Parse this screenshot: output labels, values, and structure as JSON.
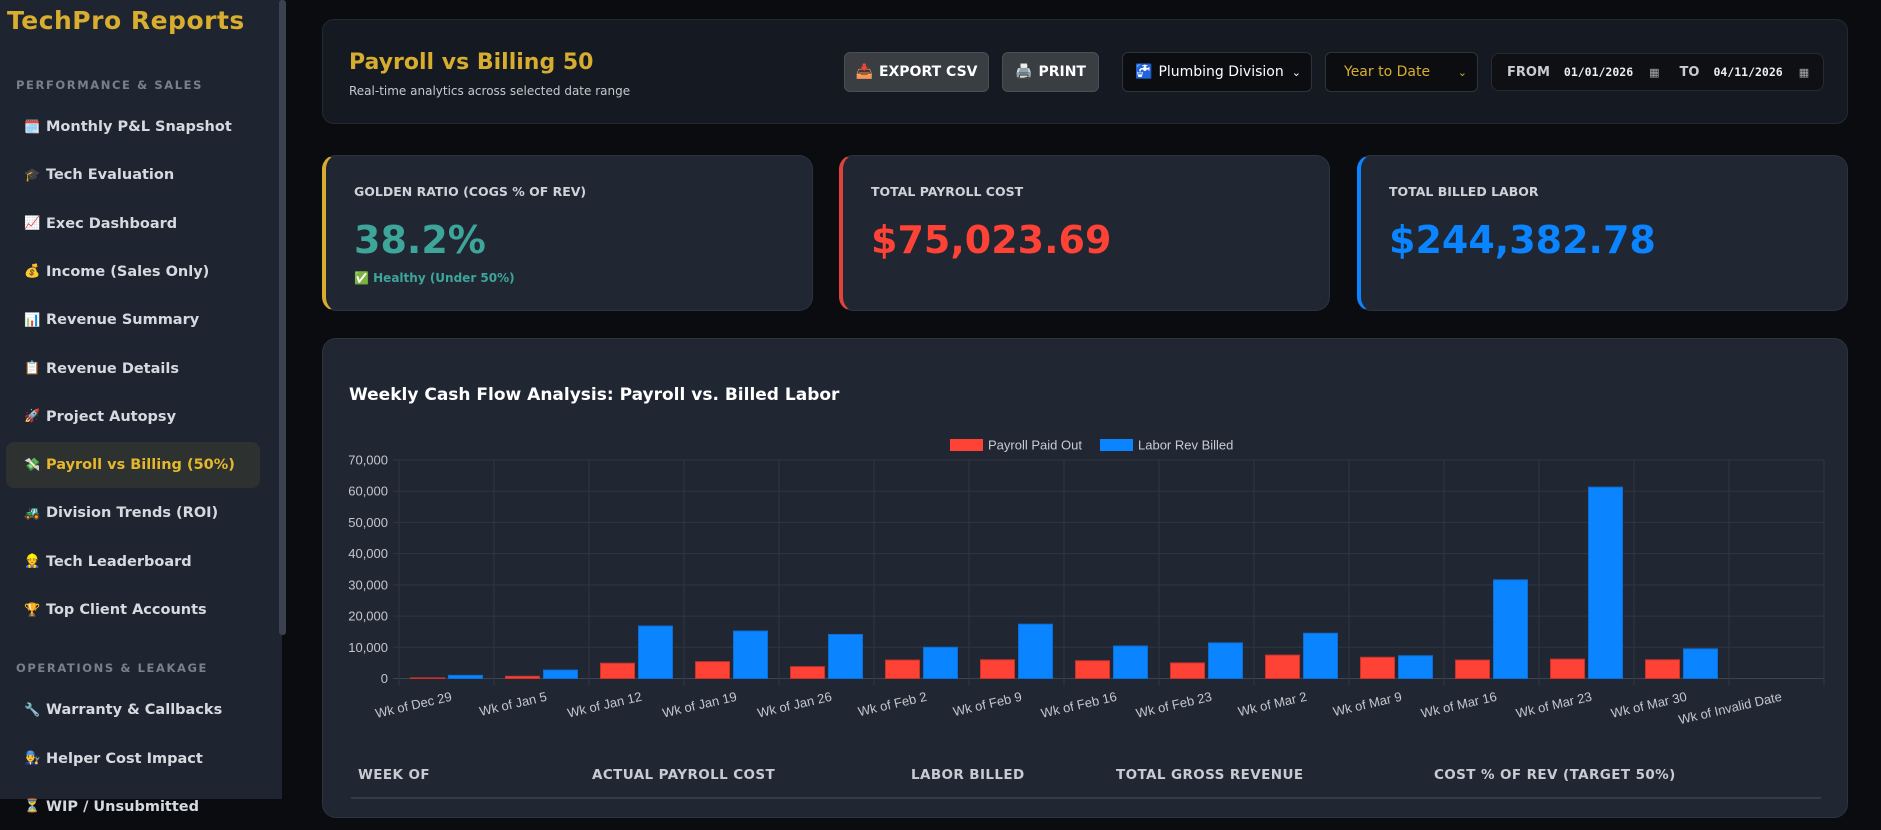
{
  "sidebar": {
    "brand": "TechPro Reports",
    "sections": [
      {
        "title": "PERFORMANCE & SALES",
        "items": [
          {
            "icon": "🗓️",
            "label": "Monthly P&L Snapshot"
          },
          {
            "icon": "🎓",
            "label": "Tech Evaluation"
          },
          {
            "icon": "📈",
            "label": "Exec Dashboard"
          },
          {
            "icon": "💰",
            "label": "Income (Sales Only)"
          },
          {
            "icon": "📊",
            "label": "Revenue Summary"
          },
          {
            "icon": "📋",
            "label": "Revenue Details"
          },
          {
            "icon": "🚀",
            "label": "Project Autopsy"
          },
          {
            "icon": "💸",
            "label": "Payroll vs Billing (50%)",
            "active": true
          },
          {
            "icon": "🚜",
            "label": "Division Trends (ROI)"
          },
          {
            "icon": "👷",
            "label": "Tech Leaderboard"
          },
          {
            "icon": "🏆",
            "label": "Top Client Accounts"
          }
        ]
      },
      {
        "title": "OPERATIONS & LEAKAGE",
        "items": [
          {
            "icon": "🔧",
            "label": "Warranty & Callbacks"
          },
          {
            "icon": "👨‍🔧",
            "label": "Helper Cost Impact"
          },
          {
            "icon": "⏳",
            "label": "WIP / Unsubmitted"
          }
        ]
      }
    ]
  },
  "header": {
    "title": "Payroll vs Billing 50",
    "subtitle": "Real-time analytics across selected date range",
    "export_icon": "📥",
    "export_label": "EXPORT CSV",
    "print_icon": "🖨️",
    "print_label": "PRINT",
    "division_icon": "🚰",
    "division": "Plumbing Division",
    "period": "Year to Date",
    "from_label": "FROM",
    "from_value": "01/01/2026",
    "to_label": "TO",
    "to_value": "04/11/2026"
  },
  "kpis": [
    {
      "label": "GOLDEN RATIO (COGS % OF REV)",
      "value": "38.2%",
      "note_icon": "✅",
      "note": "Healthy (Under 50%)",
      "color": "#3da59a",
      "accent": "#d6ad2f"
    },
    {
      "label": "TOTAL PAYROLL COST",
      "value": "$75,023.69",
      "color": "#ff4236",
      "accent": "#e0433a"
    },
    {
      "label": "TOTAL BILLED LABOR",
      "value": "$244,382.78",
      "color": "#0a84ff",
      "accent": "#0a84ff"
    }
  ],
  "chart_data": {
    "type": "bar",
    "title": "Weekly Cash Flow Analysis: Payroll vs. Billed Labor",
    "categories": [
      "Wk of Dec 29",
      "Wk of Jan 5",
      "Wk of Jan 12",
      "Wk of Jan 19",
      "Wk of Jan 26",
      "Wk of Feb 2",
      "Wk of Feb 9",
      "Wk of Feb 16",
      "Wk of Feb 23",
      "Wk of Mar 2",
      "Wk of Mar 9",
      "Wk of Mar 16",
      "Wk of Mar 23",
      "Wk of Mar 30",
      "Wk of Invalid Date"
    ],
    "series": [
      {
        "name": "Payroll Paid Out",
        "color": "#ff4236",
        "values": [
          200,
          700,
          4900,
          5400,
          3800,
          5900,
          6000,
          5700,
          5000,
          7500,
          6800,
          5900,
          6200,
          6000,
          0
        ]
      },
      {
        "name": "Labor Rev Billed",
        "color": "#0a84ff",
        "values": [
          1000,
          2700,
          16800,
          15200,
          14100,
          10000,
          17400,
          10400,
          11400,
          14500,
          7300,
          31600,
          61300,
          9500,
          0
        ]
      }
    ],
    "yticks": [
      "0",
      "10,000",
      "20,000",
      "30,000",
      "40,000",
      "50,000",
      "60,000",
      "70,000"
    ],
    "ylim": [
      0,
      70000
    ],
    "grid": true,
    "legend": "top-center"
  },
  "table": {
    "columns": [
      "WEEK OF",
      "ACTUAL PAYROLL COST",
      "LABOR BILLED",
      "TOTAL GROSS REVENUE",
      "COST % OF REV (TARGET 50%)"
    ]
  }
}
